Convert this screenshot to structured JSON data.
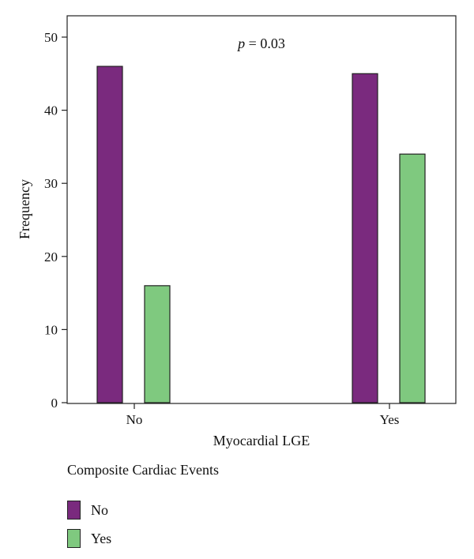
{
  "chart_data": {
    "type": "bar",
    "title": "",
    "xlabel": "Myocardial LGE",
    "ylabel": "Frequency",
    "categories": [
      "No",
      "Yes"
    ],
    "series": [
      {
        "name": "No",
        "values": [
          46,
          45
        ],
        "color": "#7a2a7e"
      },
      {
        "name": "Yes",
        "values": [
          16,
          34
        ],
        "color": "#7fc97f"
      }
    ],
    "ylim": [
      0,
      50
    ],
    "yticks": [
      0,
      10,
      20,
      30,
      40,
      50
    ],
    "grid": false,
    "annotation": {
      "p_symbol": "p",
      "p_rest": " = 0.03"
    },
    "legend": {
      "title": "Composite Cardiac Events",
      "placement": "bottom-left"
    }
  }
}
